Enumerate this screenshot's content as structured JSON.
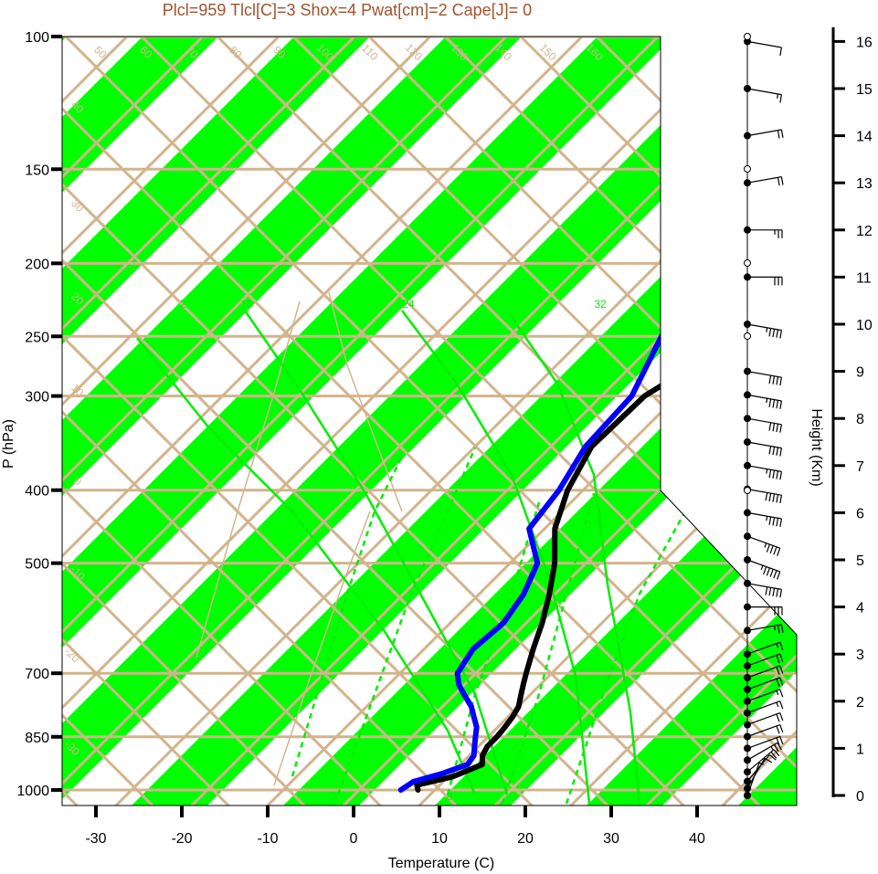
{
  "title": "Plcl=959 Tlcl[C]=3 Shox=4 Pwat[cm]=2 Cape[J]= 0",
  "colors": {
    "title": "#a0522d",
    "band": "#00ff00",
    "isoline": "#d2b48c",
    "mixing_ratio": "#00ee00",
    "temperature": "#000000",
    "dewpoint": "#0000ff"
  },
  "chart_data": {
    "type": "line",
    "xlabel": "Temperature (C)",
    "ylabel": "P (hPa)",
    "right_label": "Height (Km)",
    "x_ticks": [
      -30,
      -20,
      -10,
      0,
      10,
      20,
      30,
      40
    ],
    "xlim": [
      -33.8,
      52.3
    ],
    "y_ticks": [
      100,
      150,
      200,
      250,
      300,
      400,
      500,
      700,
      850,
      1000
    ],
    "ylim": [
      1050,
      100
    ],
    "y_scale": "log",
    "height_ticks_km": [
      0,
      1,
      2,
      3,
      4,
      5,
      6,
      7,
      8,
      9,
      10,
      11,
      12,
      13,
      14,
      15,
      16
    ],
    "isotherm_labels": [
      50,
      60,
      70,
      80,
      90,
      100,
      110,
      120,
      130,
      140,
      150,
      160,
      40,
      30,
      20,
      10,
      0,
      -10,
      -20,
      -30,
      30,
      20,
      10,
      0,
      -10,
      -20,
      -30
    ],
    "mixing_ratio_labels": [
      2,
      16,
      24,
      32,
      3,
      8
    ],
    "series": [
      {
        "name": "",
        "role": "temperature",
        "pressure": [
          1000,
          985,
          960,
          925,
          900,
          875,
          850,
          825,
          800,
          775,
          750,
          725,
          700,
          650,
          600,
          550,
          500,
          450,
          400,
          350,
          300,
          275,
          250,
          225,
          200,
          175,
          150,
          125,
          110
        ],
        "values": [
          7.5,
          6.8,
          10,
          12,
          11,
          10.5,
          10.5,
          10.3,
          10,
          9.5,
          8.5,
          7.5,
          6.5,
          4.5,
          2.5,
          0,
          -3,
          -7,
          -10,
          -12.3,
          -12,
          -10,
          -8,
          -5,
          -3,
          3,
          9.5,
          14,
          17
        ]
      },
      {
        "name": "",
        "role": "dewpoint",
        "pressure": [
          1000,
          975,
          950,
          925,
          900,
          875,
          850,
          825,
          800,
          775,
          750,
          725,
          700,
          650,
          600,
          550,
          500,
          450,
          400,
          350,
          300,
          250,
          225,
          200,
          190,
          175,
          150,
          125,
          105
        ],
        "values": [
          5.5,
          6,
          8.5,
          10.3,
          10,
          9,
          8,
          7,
          5.5,
          4,
          2,
          0,
          -1.5,
          -2.5,
          -2,
          -3,
          -5,
          -10,
          -11,
          -13,
          -13.5,
          -17,
          -18,
          -22,
          -23.8,
          -20.5,
          -13,
          -5.5,
          0
        ]
      }
    ],
    "wind_profile": {
      "height_km": [
        0,
        0.15,
        0.3,
        0.5,
        0.75,
        1.0,
        1.25,
        1.5,
        1.75,
        2.0,
        2.25,
        2.5,
        2.75,
        3.0,
        3.5,
        4.0,
        4.5,
        5.0,
        5.5,
        6.0,
        6.5,
        7.0,
        7.5,
        8.0,
        8.5,
        9.0,
        10.0,
        11.0,
        12.0,
        13.0,
        14.0,
        15.0,
        16.0
      ],
      "speed_kt": [
        5,
        10,
        10,
        20,
        25,
        20,
        20,
        20,
        15,
        15,
        20,
        20,
        20,
        15,
        25,
        30,
        50,
        55,
        45,
        45,
        50,
        45,
        40,
        40,
        45,
        40,
        45,
        30,
        25,
        20,
        20,
        15,
        10
      ],
      "direction_deg": [
        200,
        210,
        220,
        230,
        240,
        250,
        250,
        250,
        250,
        250,
        250,
        250,
        250,
        250,
        260,
        270,
        280,
        290,
        290,
        280,
        280,
        280,
        280,
        280,
        280,
        280,
        280,
        270,
        270,
        260,
        260,
        280,
        280
      ]
    }
  }
}
